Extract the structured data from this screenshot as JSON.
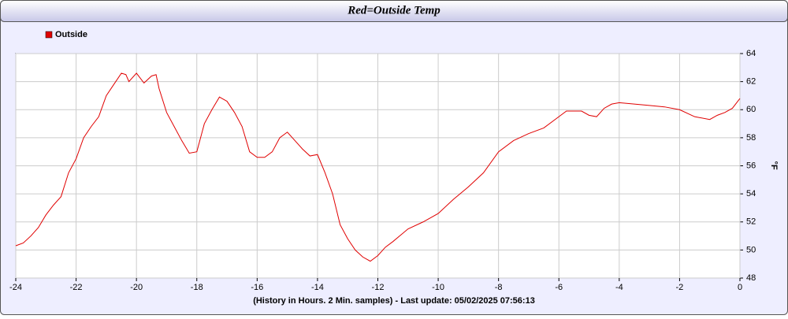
{
  "chart_data": {
    "type": "line",
    "title": "Red=Outside Temp",
    "xlabel": "(History in Hours. 2 Min. samples) - Last update: 05/02/2025 07:56:13",
    "ylabel": "°F",
    "x": [
      -24,
      -23.75,
      -23.5,
      -23.25,
      -23,
      -22.75,
      -22.5,
      -22.25,
      -22,
      -21.75,
      -21.5,
      -21.25,
      -21,
      -20.75,
      -20.5,
      -20.35,
      -20.25,
      -20,
      -19.75,
      -19.5,
      -19.35,
      -19.25,
      -19,
      -18.75,
      -18.5,
      -18.25,
      -18,
      -17.75,
      -17.5,
      -17.25,
      -17,
      -16.75,
      -16.5,
      -16.25,
      -16,
      -15.75,
      -15.5,
      -15.25,
      -15,
      -14.75,
      -14.5,
      -14.25,
      -14,
      -13.75,
      -13.5,
      -13.25,
      -13,
      -12.75,
      -12.5,
      -12.25,
      -12,
      -11.75,
      -11.5,
      -11,
      -10.5,
      -10,
      -9.5,
      -9,
      -8.5,
      -8,
      -7.5,
      -7,
      -6.5,
      -6,
      -5.75,
      -5.25,
      -5,
      -4.75,
      -4.5,
      -4.25,
      -4,
      -3.5,
      -3,
      -2.5,
      -2,
      -1.5,
      -1,
      -0.75,
      -0.5,
      -0.25,
      0
    ],
    "series": [
      {
        "name": "Outside",
        "color": "#e00000",
        "values": [
          50.3,
          50.5,
          51.0,
          51.6,
          52.5,
          53.2,
          53.8,
          55.5,
          56.5,
          58.0,
          58.8,
          59.5,
          61.0,
          61.8,
          62.6,
          62.5,
          62.0,
          62.6,
          61.9,
          62.4,
          62.5,
          61.5,
          59.8,
          58.8,
          57.8,
          56.9,
          57.0,
          59.0,
          60.0,
          60.9,
          60.6,
          59.8,
          58.8,
          57.0,
          56.6,
          56.6,
          57.0,
          58.0,
          58.4,
          57.8,
          57.2,
          56.7,
          56.8,
          55.5,
          54.0,
          51.8,
          50.8,
          50.0,
          49.5,
          49.2,
          49.6,
          50.2,
          50.6,
          51.5,
          52.0,
          52.6,
          53.6,
          54.5,
          55.5,
          57.0,
          57.8,
          58.3,
          58.7,
          59.5,
          59.9,
          59.9,
          59.6,
          59.5,
          60.1,
          60.4,
          60.5,
          60.4,
          60.3,
          60.2,
          60.0,
          59.5,
          59.3,
          59.6,
          59.8,
          60.1,
          60.8
        ]
      }
    ],
    "xlim": [
      -24,
      0
    ],
    "xticks": [
      -24,
      -22,
      -20,
      -18,
      -16,
      -14,
      -12,
      -10,
      -8,
      -6,
      -4,
      -2,
      0
    ],
    "ylim": [
      48,
      64
    ],
    "yticks": [
      48,
      50,
      52,
      54,
      56,
      58,
      60,
      62,
      64
    ],
    "grid": true
  }
}
